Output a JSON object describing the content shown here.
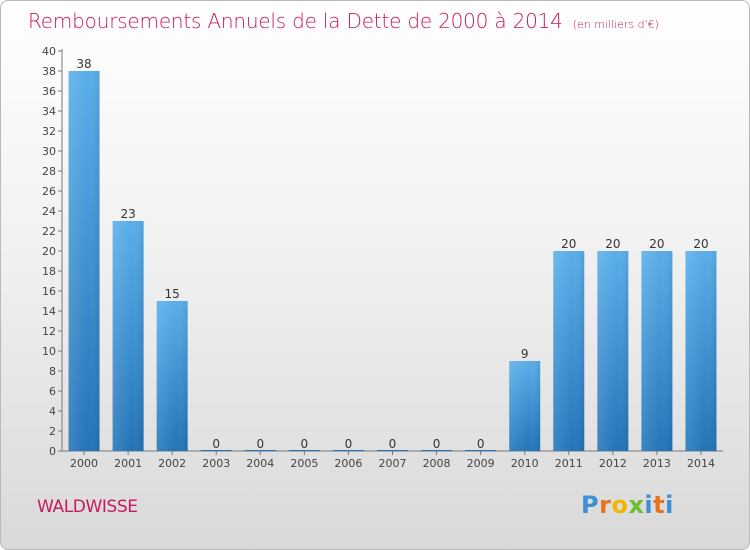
{
  "title": "Remboursements Annuels de la Dette de 2000 à 2014",
  "unit_note": "(en milliers d'€)",
  "commune": "WALDWISSE",
  "logo_text": "Proxiti",
  "colors": {
    "title": "#c8195f",
    "bar_top": "#5aaeea",
    "bar_bottom": "#2374b8"
  },
  "chart_data": {
    "type": "bar",
    "title": "Remboursements Annuels de la Dette de 2000 à 2014",
    "categories": [
      "2000",
      "2001",
      "2002",
      "2003",
      "2004",
      "2005",
      "2006",
      "2007",
      "2008",
      "2009",
      "2010",
      "2011",
      "2012",
      "2013",
      "2014"
    ],
    "values": [
      38,
      23,
      15,
      0,
      0,
      0,
      0,
      0,
      0,
      0,
      9,
      20,
      20,
      20,
      20
    ],
    "xlabel": "",
    "ylabel": "",
    "ylim": [
      0,
      40
    ],
    "ytick_step": 2,
    "grid": false,
    "data_labels": true
  }
}
